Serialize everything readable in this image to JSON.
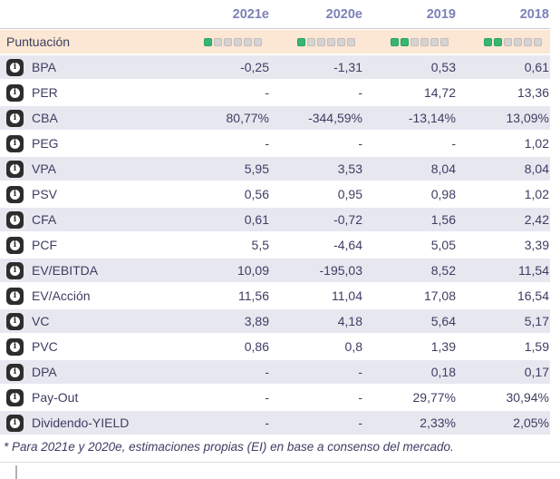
{
  "table": {
    "columns": [
      "2021e",
      "2020e",
      "2019",
      "2018"
    ],
    "score_row": {
      "label": "Puntuación",
      "max_squares": 6,
      "scores": [
        1,
        1,
        2,
        2
      ]
    },
    "rows": [
      {
        "label": "BPA",
        "values": [
          "-0,25",
          "-1,31",
          "0,53",
          "0,61"
        ]
      },
      {
        "label": "PER",
        "values": [
          "-",
          "-",
          "14,72",
          "13,36"
        ]
      },
      {
        "label": "CBA",
        "values": [
          "80,77%",
          "-344,59%",
          "-13,14%",
          "13,09%"
        ]
      },
      {
        "label": "PEG",
        "values": [
          "-",
          "-",
          "-",
          "1,02"
        ]
      },
      {
        "label": "VPA",
        "values": [
          "5,95",
          "3,53",
          "8,04",
          "8,04"
        ]
      },
      {
        "label": "PSV",
        "values": [
          "0,56",
          "0,95",
          "0,98",
          "1,02"
        ]
      },
      {
        "label": "CFA",
        "values": [
          "0,61",
          "-0,72",
          "1,56",
          "2,42"
        ]
      },
      {
        "label": "PCF",
        "values": [
          "5,5",
          "-4,64",
          "5,05",
          "3,39"
        ]
      },
      {
        "label": "EV/EBITDA",
        "values": [
          "10,09",
          "-195,03",
          "8,52",
          "11,54"
        ]
      },
      {
        "label": "EV/Acción",
        "values": [
          "11,56",
          "11,04",
          "17,08",
          "16,54"
        ]
      },
      {
        "label": "VC",
        "values": [
          "3,89",
          "4,18",
          "5,64",
          "5,17"
        ]
      },
      {
        "label": "PVC",
        "values": [
          "0,86",
          "0,8",
          "1,39",
          "1,59"
        ]
      },
      {
        "label": "DPA",
        "values": [
          "-",
          "-",
          "0,18",
          "0,17"
        ]
      },
      {
        "label": "Pay-Out",
        "values": [
          "-",
          "-",
          "29,77%",
          "30,94%"
        ]
      },
      {
        "label": "Dividendo-YIELD",
        "values": [
          "-",
          "-",
          "2,33%",
          "2,05%"
        ]
      }
    ],
    "footnote": "* Para 2021e y 2020e, estimaciones propias (EI) en base a consenso del mercado.",
    "info_icon_glyph": "i"
  },
  "colors": {
    "accent_green": "#36b673",
    "accent_green_border": "#2aa161",
    "score_empty": "#d8d3d3",
    "score_empty_border": "#c3bdbd",
    "header_text": "#7c80b7",
    "body_text": "#3d3d63",
    "score_row_bg": "#fbe7d3",
    "row_alt_bg": "#e7e7f0",
    "info_icon_bg": "#2d2d2d",
    "divider": "#cdccd6"
  }
}
